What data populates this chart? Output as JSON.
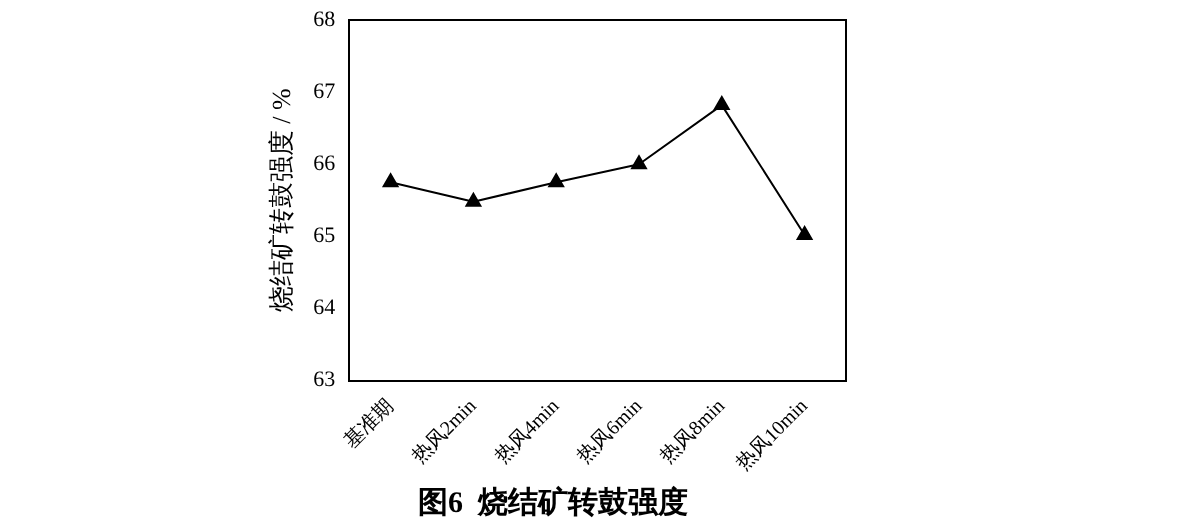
{
  "chart_data": {
    "type": "line",
    "title": "图6  烧结矿转鼓强度",
    "ylabel": "烧结矿转鼓强度 / %",
    "categories": [
      "基准期",
      "热风2min",
      "热风4min",
      "热风6min",
      "热风8min",
      "热风10min"
    ],
    "series": [
      {
        "color": "#000000",
        "values": [
          65.75,
          65.48,
          65.75,
          66.0,
          66.82,
          65.02
        ]
      }
    ],
    "ylim": [
      63,
      68
    ],
    "yticks": [
      63,
      64,
      65,
      66,
      67,
      68
    ],
    "grid": false,
    "legend": false,
    "marker": "triangle",
    "line_style": "solid"
  }
}
